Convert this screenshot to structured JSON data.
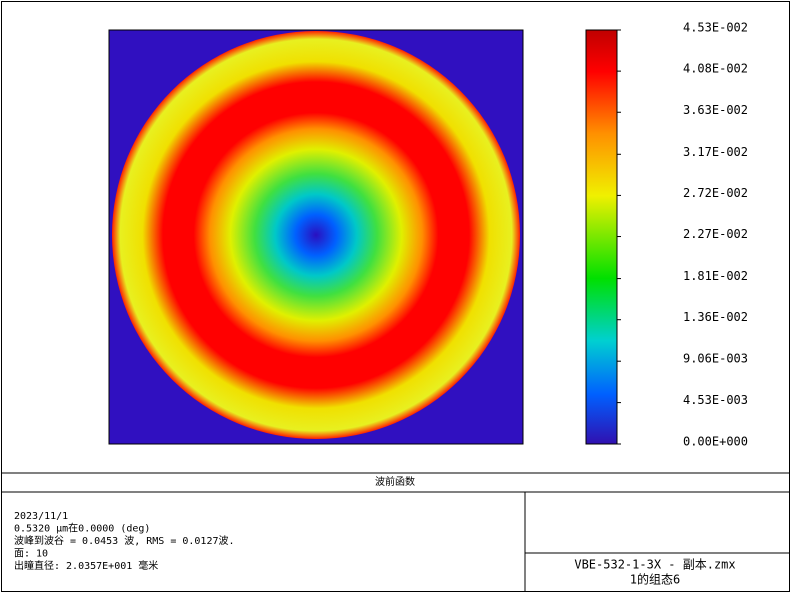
{
  "chart_data": {
    "type": "wavefront-map",
    "title": "波前函数",
    "clim": [
      0,
      0.0453
    ],
    "colorbar_ticks": [
      {
        "value": 0.0453,
        "label": "4.53E-002"
      },
      {
        "value": 0.0408,
        "label": "4.08E-002"
      },
      {
        "value": 0.0363,
        "label": "3.63E-002"
      },
      {
        "value": 0.0317,
        "label": "3.17E-002"
      },
      {
        "value": 0.0272,
        "label": "2.72E-002"
      },
      {
        "value": 0.0227,
        "label": "2.27E-002"
      },
      {
        "value": 0.0181,
        "label": "1.81E-002"
      },
      {
        "value": 0.0136,
        "label": "1.36E-002"
      },
      {
        "value": 0.00906,
        "label": "9.06E-003"
      },
      {
        "value": 0.00453,
        "label": "4.53E-003"
      },
      {
        "value": 0,
        "label": "0.00E+000"
      }
    ],
    "info": [
      "2023/11/1",
      "0.5320 µm在0.0000 (deg)",
      "波峰到波谷 = 0.0453 波, RMS = 0.0127波.",
      "面: 10",
      "出瞳直径: 2.0357E+001 毫米"
    ],
    "file": "VBE-532-1-3X - 副本.zmx",
    "config": "1的组态6"
  }
}
